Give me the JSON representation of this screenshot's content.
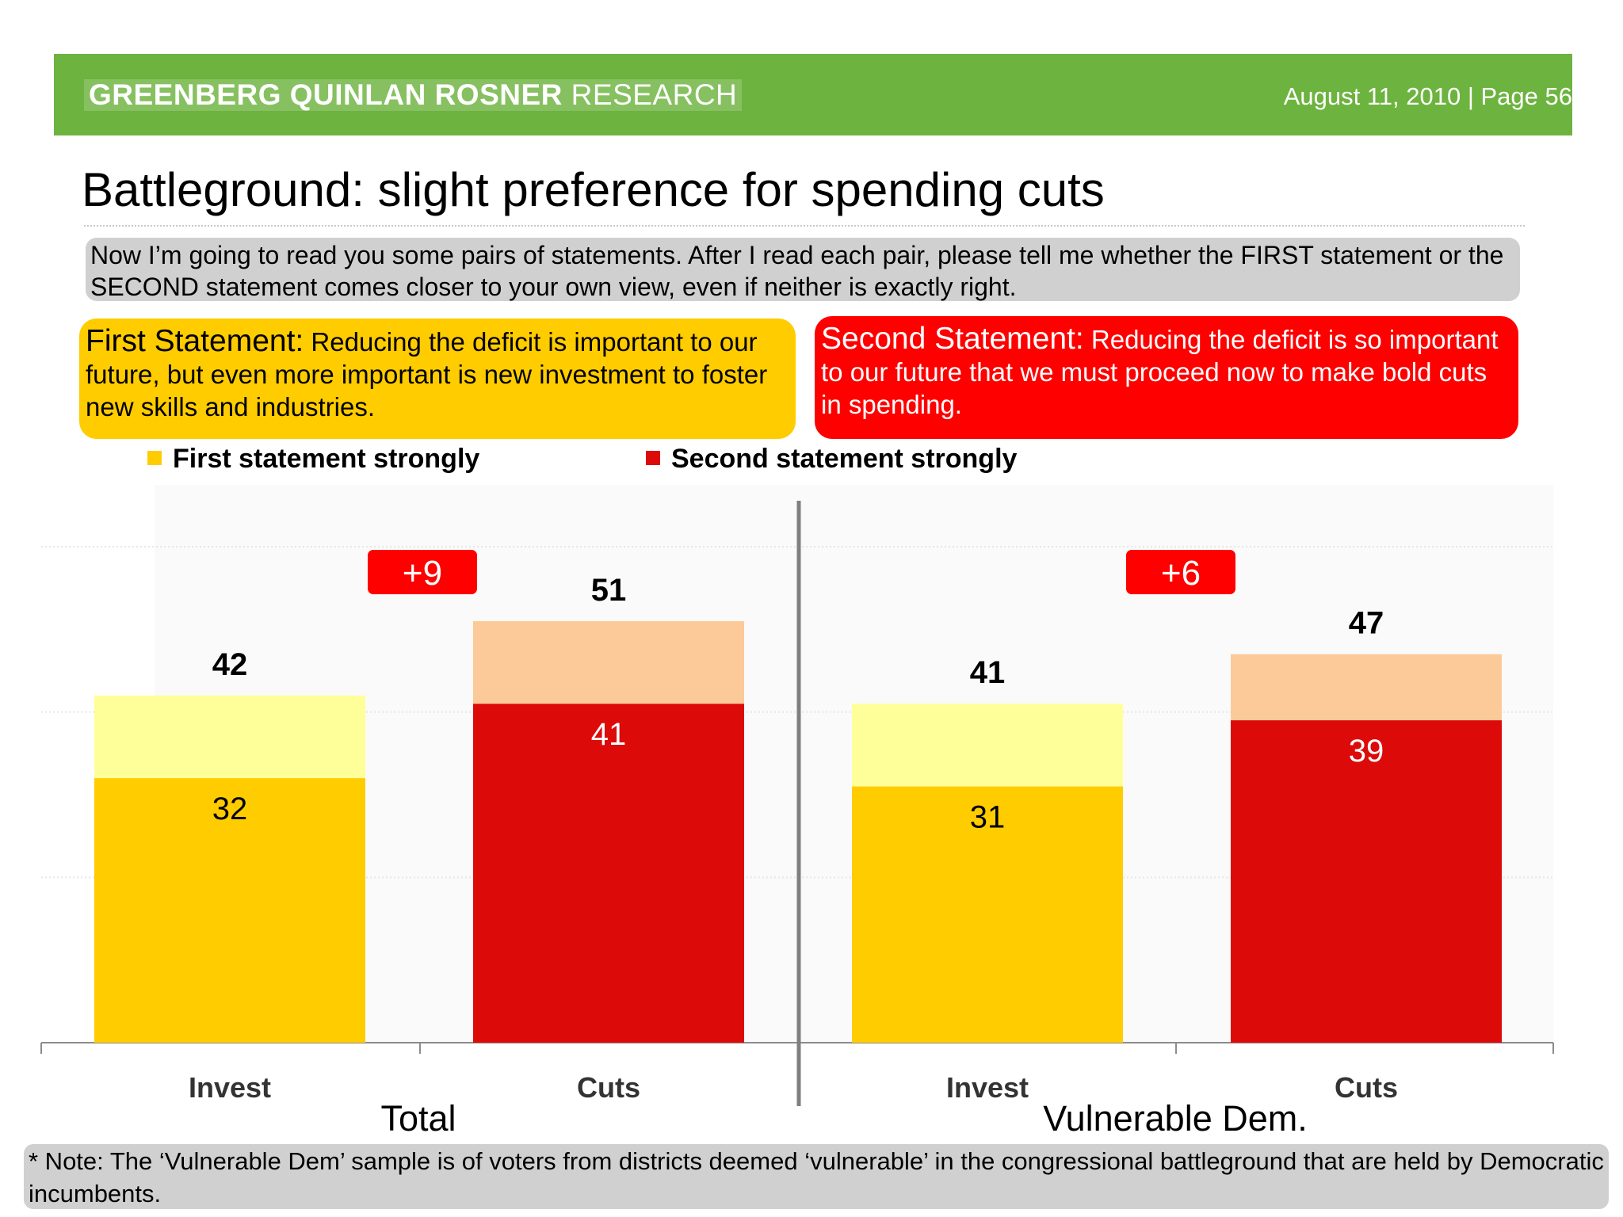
{
  "header": {
    "brand_bold": "GREENBERG QUINLAN ROSNER",
    "brand_light": "RESEARCH",
    "page_info": "August 11, 2010  |  Page 56"
  },
  "page_title": "Battleground: slight preference for spending cuts",
  "question": "Now I’m going to read you some pairs of statements. After I read each pair, please tell me whether the FIRST statement or the SECOND statement comes closer to your own view, even if neither is exactly right.",
  "statements": {
    "first_head": "First Statement:",
    "first_text": " Reducing the deficit is important to our future, but even more important is new investment to foster new skills and industries.",
    "second_head": "Second Statement:",
    "second_text": " Reducing the deficit is so important to our future that we must proceed now to make bold cuts in spending."
  },
  "legend": {
    "first": "First statement strongly",
    "second": "Second statement strongly"
  },
  "note": "* Note: The ‘Vulnerable Dem’ sample is of voters from districts deemed ‘vulnerable’ in the congressional battleground that are held by Democratic incumbents.",
  "colors": {
    "banner": "#6db33f",
    "invest_strong": "#ffcc00",
    "invest_total": "#ffff99",
    "cuts_strong": "#dd0a0a",
    "cuts_total": "#fcca98",
    "margin_badge": "#ff0000"
  },
  "chart_data": {
    "type": "bar",
    "stacked": true,
    "ylim": [
      0,
      60
    ],
    "grid": true,
    "groups": [
      {
        "label": "Total",
        "margin": "+9",
        "bars": [
          {
            "category": "Invest",
            "strong": 32,
            "total": 42
          },
          {
            "category": "Cuts",
            "strong": 41,
            "total": 51
          }
        ]
      },
      {
        "label": "Vulnerable Dem.",
        "margin": "+6",
        "bars": [
          {
            "category": "Invest",
            "strong": 31,
            "total": 41
          },
          {
            "category": "Cuts",
            "strong": 39,
            "total": 47
          }
        ]
      }
    ],
    "series": [
      {
        "name": "First statement strongly",
        "applies_to": "Invest"
      },
      {
        "name": "Second statement strongly",
        "applies_to": "Cuts"
      }
    ]
  }
}
